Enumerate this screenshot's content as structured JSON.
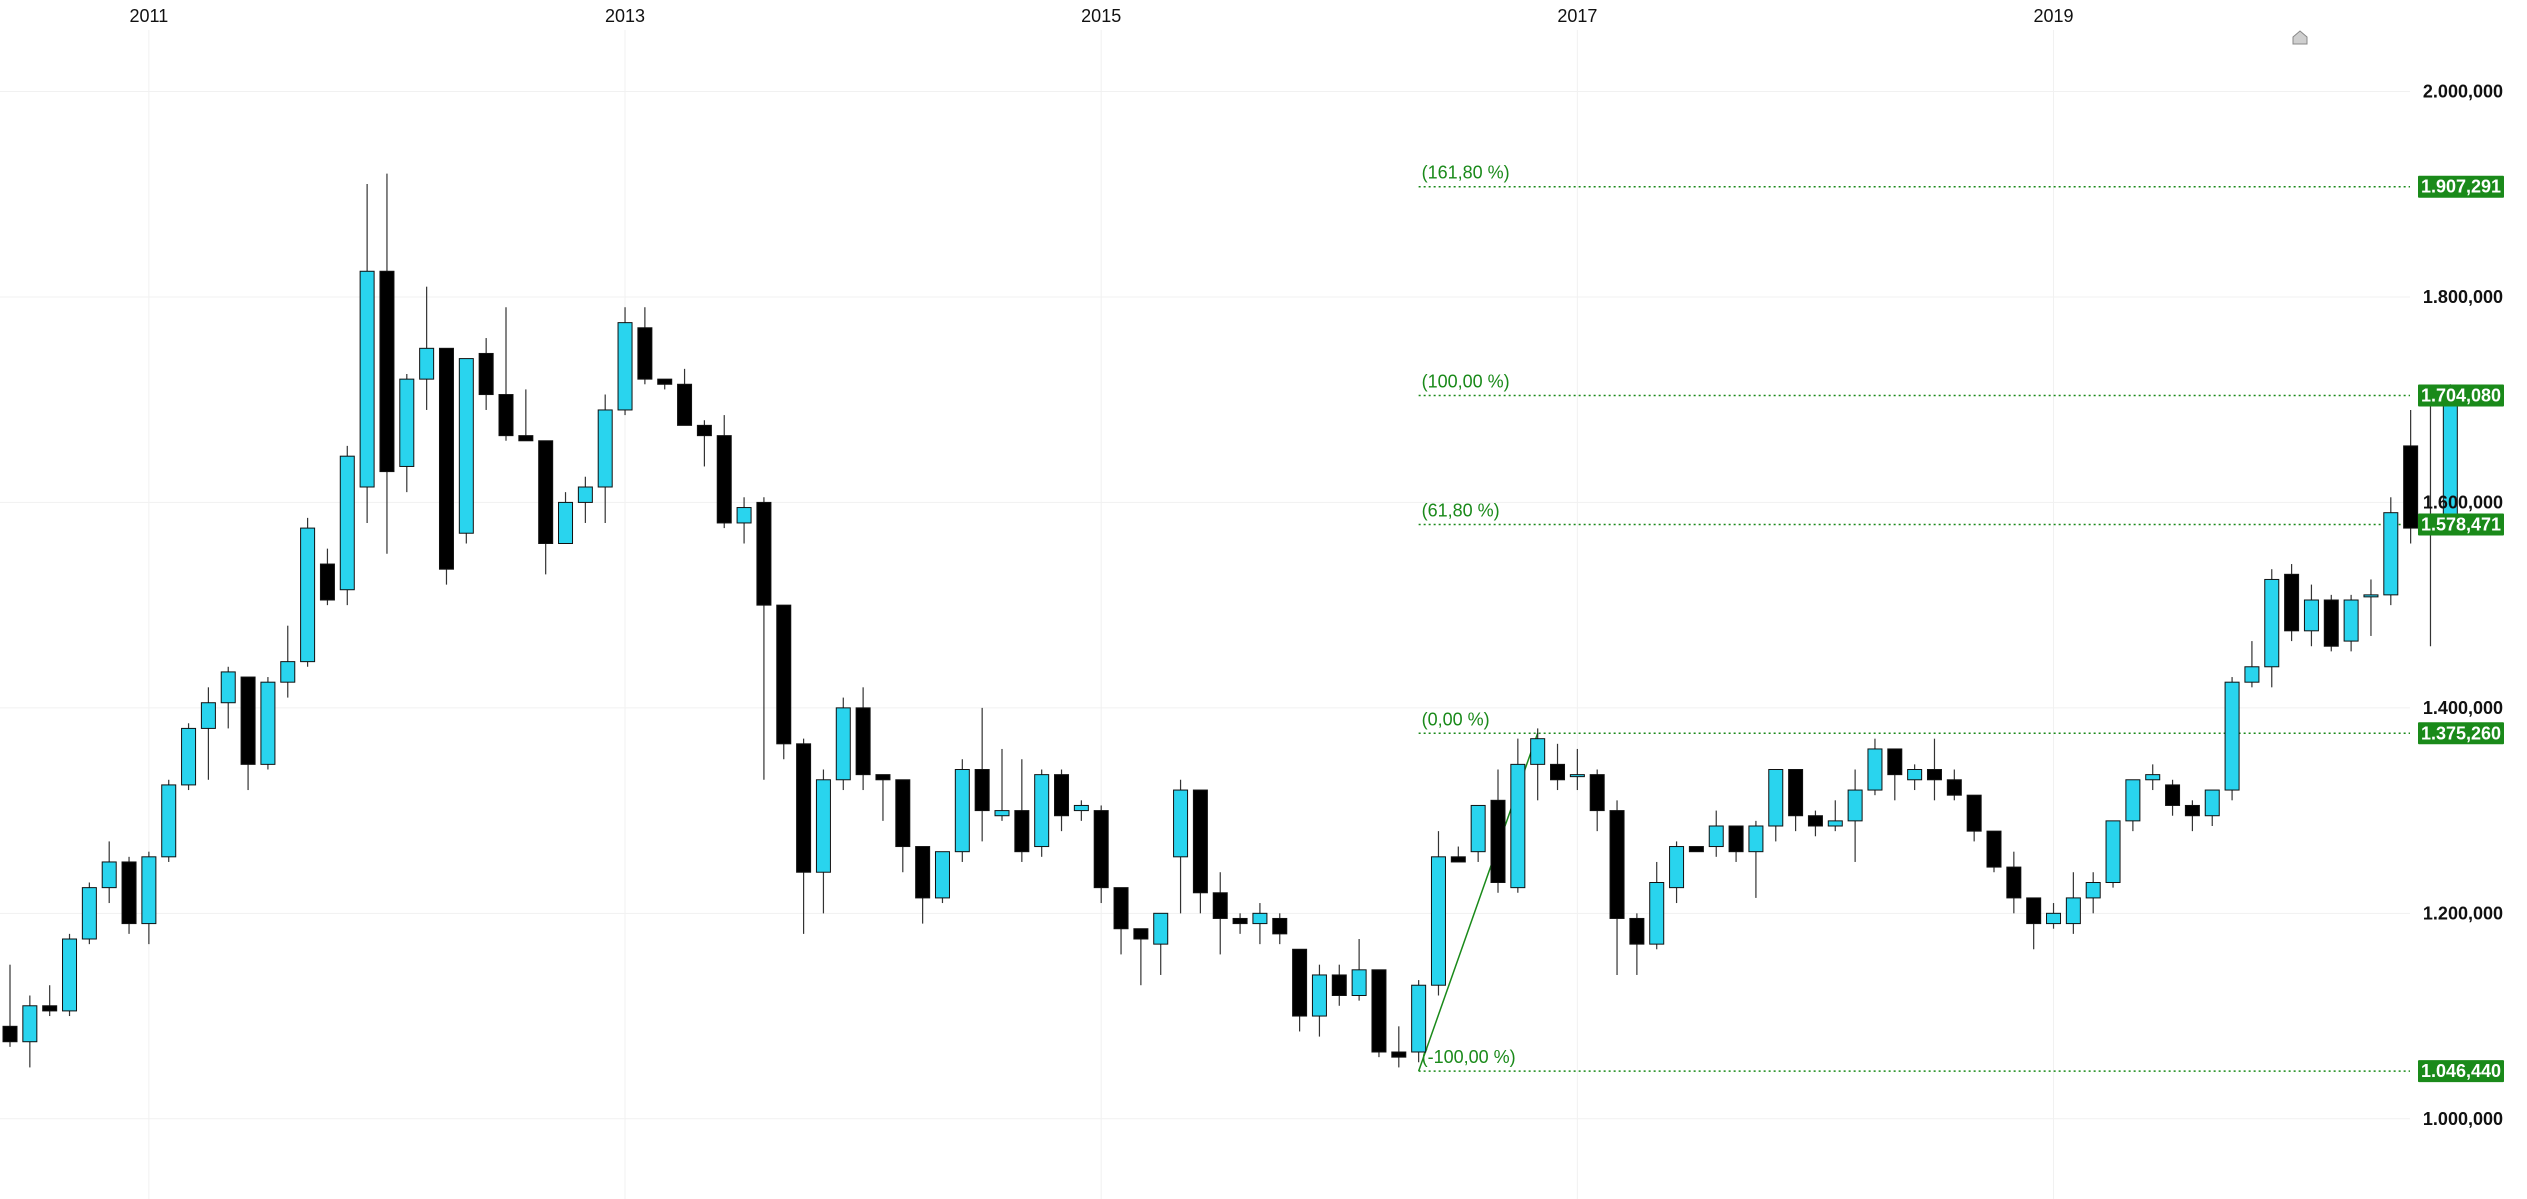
{
  "colors": {
    "up_candle": "#29d4ee",
    "down_candle": "#000000",
    "wick": "#333333",
    "fib": "#1a8a1a",
    "grid": "#f1f1f1"
  },
  "chart_data": {
    "type": "candlestick",
    "title": "",
    "x_tick_labels": [
      {
        "month_index": 7,
        "label": "2011"
      },
      {
        "month_index": 31,
        "label": "2013"
      },
      {
        "month_index": 55,
        "label": "2015"
      },
      {
        "month_index": 79,
        "label": "2017"
      },
      {
        "month_index": 103,
        "label": "2019"
      }
    ],
    "y_tick_labels": [
      {
        "value": 1.0,
        "label": "1.000,000"
      },
      {
        "value": 1.2,
        "label": "1.200,000"
      },
      {
        "value": 1.4,
        "label": "1.400,000"
      },
      {
        "value": 1.6,
        "label": "1.600,000"
      },
      {
        "value": 1.8,
        "label": "1.800,000"
      },
      {
        "value": 2.0,
        "label": "2.000,000"
      }
    ],
    "ylim": [
      0.955,
      2.055
    ],
    "price_badges": [
      {
        "value": 1.907291,
        "label": "1.907,291"
      },
      {
        "value": 1.70408,
        "label": "1.704,080"
      },
      {
        "value": 1.578471,
        "label": "1.578,471"
      },
      {
        "value": 1.37526,
        "label": "1.375,260"
      },
      {
        "value": 1.04644,
        "label": "1.046,440"
      }
    ],
    "fibonacci": {
      "start_month_index": 71,
      "low": 1.04644,
      "high": 1.37526,
      "trend_from": {
        "month_index": 71,
        "value": 1.04644
      },
      "trend_to": {
        "month_index": 77,
        "value": 1.37526
      },
      "levels": [
        {
          "value": 1.907291,
          "label": "(161,80 %)"
        },
        {
          "value": 1.70408,
          "label": "(100,00 %)"
        },
        {
          "value": 1.578471,
          "label": "(61,80 %)"
        },
        {
          "value": 1.37526,
          "label": "(0,00 %)"
        },
        {
          "value": 1.04644,
          "label": "(-100,00 %)"
        }
      ]
    },
    "ohlc": [
      [
        1.09,
        1.15,
        1.07,
        1.075
      ],
      [
        1.075,
        1.12,
        1.05,
        1.11
      ],
      [
        1.11,
        1.13,
        1.1,
        1.105
      ],
      [
        1.105,
        1.18,
        1.1,
        1.175
      ],
      [
        1.175,
        1.23,
        1.17,
        1.225
      ],
      [
        1.225,
        1.27,
        1.21,
        1.25
      ],
      [
        1.25,
        1.255,
        1.18,
        1.19
      ],
      [
        1.19,
        1.26,
        1.17,
        1.255
      ],
      [
        1.255,
        1.33,
        1.25,
        1.325
      ],
      [
        1.325,
        1.385,
        1.32,
        1.38
      ],
      [
        1.38,
        1.42,
        1.33,
        1.405
      ],
      [
        1.405,
        1.44,
        1.38,
        1.435
      ],
      [
        1.43,
        1.43,
        1.32,
        1.345
      ],
      [
        1.345,
        1.43,
        1.34,
        1.425
      ],
      [
        1.425,
        1.48,
        1.41,
        1.445
      ],
      [
        1.445,
        1.585,
        1.44,
        1.575
      ],
      [
        1.54,
        1.555,
        1.5,
        1.505
      ],
      [
        1.515,
        1.655,
        1.5,
        1.645
      ],
      [
        1.615,
        1.91,
        1.58,
        1.825
      ],
      [
        1.825,
        1.92,
        1.55,
        1.63
      ],
      [
        1.635,
        1.725,
        1.61,
        1.72
      ],
      [
        1.72,
        1.81,
        1.69,
        1.75
      ],
      [
        1.75,
        1.75,
        1.52,
        1.535
      ],
      [
        1.57,
        1.74,
        1.56,
        1.74
      ],
      [
        1.745,
        1.76,
        1.69,
        1.705
      ],
      [
        1.705,
        1.79,
        1.66,
        1.665
      ],
      [
        1.665,
        1.71,
        1.66,
        1.66
      ],
      [
        1.66,
        1.66,
        1.53,
        1.56
      ],
      [
        1.56,
        1.61,
        1.56,
        1.6
      ],
      [
        1.6,
        1.625,
        1.58,
        1.615
      ],
      [
        1.615,
        1.705,
        1.58,
        1.69
      ],
      [
        1.69,
        1.79,
        1.685,
        1.775
      ],
      [
        1.77,
        1.79,
        1.715,
        1.72
      ],
      [
        1.72,
        1.72,
        1.71,
        1.715
      ],
      [
        1.715,
        1.73,
        1.675,
        1.675
      ],
      [
        1.675,
        1.68,
        1.635,
        1.665
      ],
      [
        1.665,
        1.685,
        1.575,
        1.58
      ],
      [
        1.58,
        1.605,
        1.56,
        1.595
      ],
      [
        1.6,
        1.605,
        1.33,
        1.5
      ],
      [
        1.5,
        1.5,
        1.35,
        1.365
      ],
      [
        1.365,
        1.37,
        1.18,
        1.24
      ],
      [
        1.24,
        1.34,
        1.2,
        1.33
      ],
      [
        1.33,
        1.41,
        1.32,
        1.4
      ],
      [
        1.4,
        1.42,
        1.32,
        1.335
      ],
      [
        1.335,
        1.335,
        1.29,
        1.33
      ],
      [
        1.33,
        1.33,
        1.24,
        1.265
      ],
      [
        1.265,
        1.265,
        1.19,
        1.215
      ],
      [
        1.215,
        1.26,
        1.21,
        1.26
      ],
      [
        1.26,
        1.35,
        1.25,
        1.34
      ],
      [
        1.34,
        1.4,
        1.27,
        1.3
      ],
      [
        1.295,
        1.36,
        1.29,
        1.3
      ],
      [
        1.3,
        1.35,
        1.25,
        1.26
      ],
      [
        1.265,
        1.34,
        1.255,
        1.335
      ],
      [
        1.335,
        1.34,
        1.28,
        1.295
      ],
      [
        1.3,
        1.31,
        1.29,
        1.305
      ],
      [
        1.3,
        1.305,
        1.21,
        1.225
      ],
      [
        1.225,
        1.225,
        1.16,
        1.185
      ],
      [
        1.185,
        1.185,
        1.13,
        1.175
      ],
      [
        1.17,
        1.2,
        1.14,
        1.2
      ],
      [
        1.255,
        1.33,
        1.2,
        1.32
      ],
      [
        1.32,
        1.32,
        1.2,
        1.22
      ],
      [
        1.22,
        1.24,
        1.16,
        1.195
      ],
      [
        1.195,
        1.2,
        1.18,
        1.19
      ],
      [
        1.19,
        1.21,
        1.17,
        1.2
      ],
      [
        1.195,
        1.2,
        1.17,
        1.18
      ],
      [
        1.165,
        1.165,
        1.085,
        1.1
      ],
      [
        1.1,
        1.15,
        1.08,
        1.14
      ],
      [
        1.14,
        1.15,
        1.11,
        1.12
      ],
      [
        1.12,
        1.175,
        1.115,
        1.145
      ],
      [
        1.145,
        1.145,
        1.06,
        1.065
      ],
      [
        1.065,
        1.09,
        1.05,
        1.06
      ],
      [
        1.065,
        1.135,
        1.055,
        1.13
      ],
      [
        1.13,
        1.28,
        1.12,
        1.255
      ],
      [
        1.255,
        1.265,
        1.25,
        1.25
      ],
      [
        1.26,
        1.305,
        1.25,
        1.305
      ],
      [
        1.31,
        1.34,
        1.22,
        1.23
      ],
      [
        1.225,
        1.37,
        1.22,
        1.345
      ],
      [
        1.345,
        1.38,
        1.31,
        1.37
      ],
      [
        1.345,
        1.365,
        1.32,
        1.33
      ],
      [
        1.335,
        1.36,
        1.32,
        1.335
      ],
      [
        1.335,
        1.34,
        1.28,
        1.3
      ],
      [
        1.3,
        1.31,
        1.14,
        1.195
      ],
      [
        1.195,
        1.2,
        1.14,
        1.17
      ],
      [
        1.17,
        1.25,
        1.165,
        1.23
      ],
      [
        1.225,
        1.27,
        1.21,
        1.265
      ],
      [
        1.265,
        1.265,
        1.26,
        1.26
      ],
      [
        1.265,
        1.3,
        1.255,
        1.285
      ],
      [
        1.285,
        1.285,
        1.25,
        1.26
      ],
      [
        1.26,
        1.29,
        1.215,
        1.285
      ],
      [
        1.285,
        1.34,
        1.27,
        1.34
      ],
      [
        1.34,
        1.34,
        1.28,
        1.295
      ],
      [
        1.295,
        1.3,
        1.275,
        1.285
      ],
      [
        1.285,
        1.31,
        1.28,
        1.29
      ],
      [
        1.29,
        1.34,
        1.25,
        1.32
      ],
      [
        1.32,
        1.37,
        1.315,
        1.36
      ],
      [
        1.36,
        1.36,
        1.31,
        1.335
      ],
      [
        1.33,
        1.345,
        1.32,
        1.34
      ],
      [
        1.34,
        1.37,
        1.31,
        1.33
      ],
      [
        1.33,
        1.34,
        1.31,
        1.315
      ],
      [
        1.315,
        1.315,
        1.27,
        1.28
      ],
      [
        1.28,
        1.28,
        1.24,
        1.245
      ],
      [
        1.245,
        1.26,
        1.2,
        1.215
      ],
      [
        1.215,
        1.215,
        1.165,
        1.19
      ],
      [
        1.19,
        1.21,
        1.185,
        1.2
      ],
      [
        1.19,
        1.24,
        1.18,
        1.215
      ],
      [
        1.215,
        1.24,
        1.2,
        1.23
      ],
      [
        1.23,
        1.29,
        1.225,
        1.29
      ],
      [
        1.29,
        1.33,
        1.28,
        1.33
      ],
      [
        1.33,
        1.345,
        1.32,
        1.335
      ],
      [
        1.325,
        1.33,
        1.295,
        1.305
      ],
      [
        1.305,
        1.31,
        1.28,
        1.295
      ],
      [
        1.295,
        1.32,
        1.285,
        1.32
      ],
      [
        1.32,
        1.43,
        1.31,
        1.425
      ],
      [
        1.425,
        1.465,
        1.42,
        1.44
      ],
      [
        1.44,
        1.535,
        1.42,
        1.525
      ],
      [
        1.53,
        1.54,
        1.465,
        1.475
      ],
      [
        1.475,
        1.52,
        1.46,
        1.505
      ],
      [
        1.505,
        1.51,
        1.455,
        1.46
      ],
      [
        1.465,
        1.51,
        1.455,
        1.505
      ],
      [
        1.51,
        1.525,
        1.47,
        1.51
      ],
      [
        1.51,
        1.605,
        1.5,
        1.59
      ],
      [
        1.655,
        1.69,
        1.56,
        1.575
      ],
      [
        1.585,
        1.7,
        1.46,
        1.57
      ],
      [
        1.57,
        1.715,
        1.57,
        1.705
      ]
    ]
  }
}
